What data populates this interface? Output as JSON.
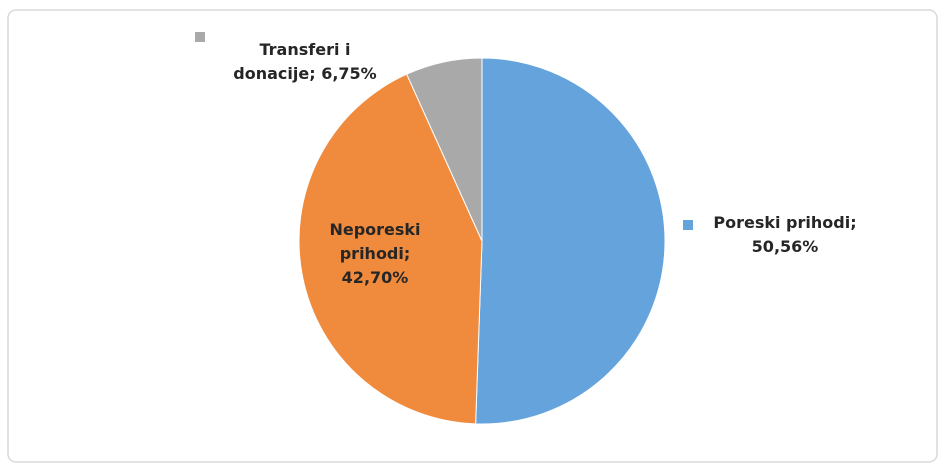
{
  "chart_data": {
    "type": "pie",
    "categories": [
      "Poreski prihodi",
      "Neporeski prihodi",
      "Transferi i donacije"
    ],
    "values": [
      50.56,
      42.7,
      6.75
    ],
    "value_labels": [
      "50,56%",
      "42,70%",
      "6,75%"
    ],
    "label_separator": ";",
    "colors": [
      "#65a3dc",
      "#f08a3c",
      "#a9a9a9"
    ]
  }
}
